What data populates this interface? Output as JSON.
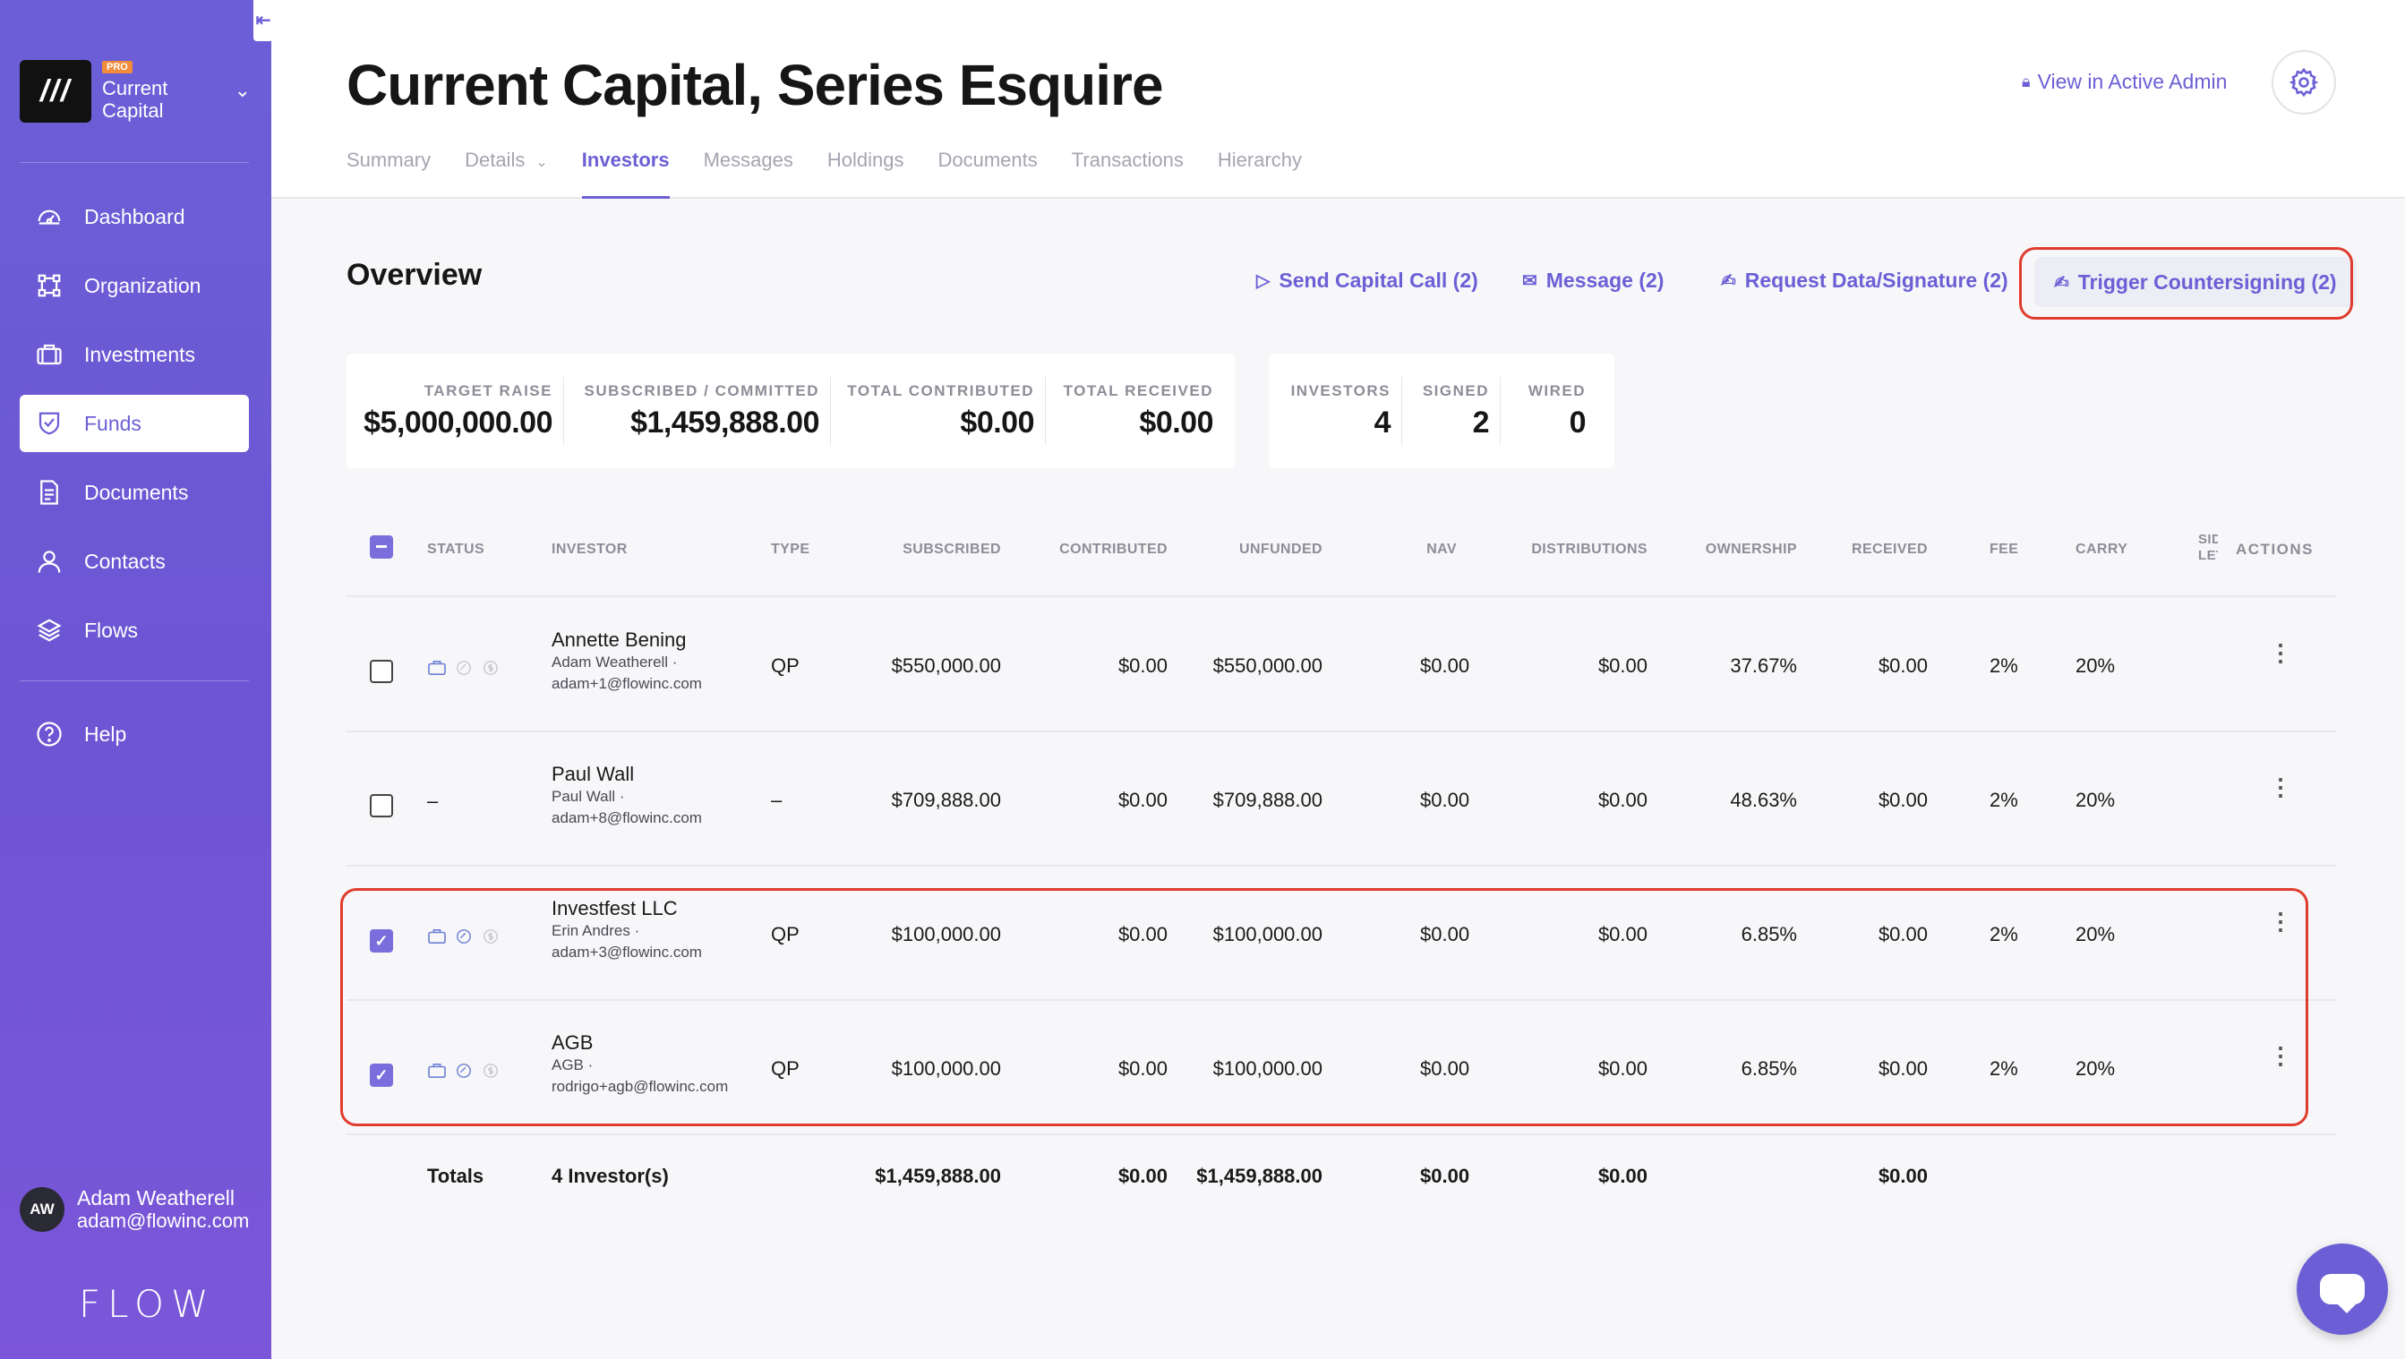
{
  "sidebar": {
    "org": {
      "logo": "///",
      "badge": "PRO",
      "name_line1": "Current",
      "name_line2": "Capital"
    },
    "nav": [
      {
        "label": "Dashboard",
        "icon": "dashboard-icon"
      },
      {
        "label": "Organization",
        "icon": "organization-icon"
      },
      {
        "label": "Investments",
        "icon": "briefcase-icon"
      },
      {
        "label": "Funds",
        "icon": "shield-check-icon",
        "active": true
      },
      {
        "label": "Documents",
        "icon": "document-icon"
      },
      {
        "label": "Contacts",
        "icon": "user-icon"
      },
      {
        "label": "Flows",
        "icon": "layers-icon"
      }
    ],
    "help": "Help",
    "user": {
      "initials": "AW",
      "name": "Adam Weatherell",
      "email": "adam@flowinc.com"
    },
    "brand": "FLOW"
  },
  "header": {
    "title": "Current Capital, Series Esquire",
    "admin_link": "View in Active Admin",
    "tabs": [
      "Summary",
      "Details",
      "Investors",
      "Messages",
      "Holdings",
      "Documents",
      "Transactions",
      "Hierarchy"
    ],
    "active_tab": "Investors"
  },
  "overview": {
    "title": "Overview",
    "actions": {
      "send_capital_call": "Send Capital Call (2)",
      "message": "Message (2)",
      "request_data": "Request Data/Signature (2)",
      "trigger_countersigning": "Trigger Countersigning (2)"
    },
    "stats": {
      "target_raise": {
        "label": "TARGET RAISE",
        "value": "$5,000,000.00"
      },
      "subscribed": {
        "label": "SUBSCRIBED / COMMITTED",
        "value": "$1,459,888.00"
      },
      "contributed": {
        "label": "TOTAL CONTRIBUTED",
        "value": "$0.00"
      },
      "received": {
        "label": "TOTAL RECEIVED",
        "value": "$0.00"
      },
      "investors": {
        "label": "INVESTORS",
        "value": "4"
      },
      "signed": {
        "label": "SIGNED",
        "value": "2"
      },
      "wired": {
        "label": "WIRED",
        "value": "0"
      }
    }
  },
  "table": {
    "headers": {
      "status": "STATUS",
      "investor": "INVESTOR",
      "type": "TYPE",
      "subscribed": "SUBSCRIBED",
      "contributed": "CONTRIBUTED",
      "unfunded": "UNFUNDED",
      "nav": "NAV",
      "distributions": "DISTRIBUTIONS",
      "ownership": "OWNERSHIP",
      "received": "RECEIVED",
      "fee": "FEE",
      "carry": "CARRY",
      "side_letter_1": "SID",
      "side_letter_2": "LETT",
      "actions": "ACTIONS"
    },
    "rows": [
      {
        "checked": false,
        "status": "icons",
        "name": "Annette Bening",
        "contact": "Adam Weatherell ·",
        "email": "adam+1@flowinc.com",
        "type": "QP",
        "subscribed": "$550,000.00",
        "contributed": "$0.00",
        "unfunded": "$550,000.00",
        "nav": "$0.00",
        "distributions": "$0.00",
        "ownership": "37.67%",
        "received": "$0.00",
        "fee": "2%",
        "carry": "20%"
      },
      {
        "checked": false,
        "status": "–",
        "name": "Paul Wall",
        "contact": "Paul Wall ·",
        "email": "adam+8@flowinc.com",
        "type": "–",
        "subscribed": "$709,888.00",
        "contributed": "$0.00",
        "unfunded": "$709,888.00",
        "nav": "$0.00",
        "distributions": "$0.00",
        "ownership": "48.63%",
        "received": "$0.00",
        "fee": "2%",
        "carry": "20%"
      },
      {
        "checked": true,
        "status": "icons",
        "name": "Investfest LLC",
        "contact": "Erin Andres ·",
        "email": "adam+3@flowinc.com",
        "type": "QP",
        "subscribed": "$100,000.00",
        "contributed": "$0.00",
        "unfunded": "$100,000.00",
        "nav": "$0.00",
        "distributions": "$0.00",
        "ownership": "6.85%",
        "received": "$0.00",
        "fee": "2%",
        "carry": "20%"
      },
      {
        "checked": true,
        "status": "icons",
        "name": "AGB",
        "contact": "AGB ·",
        "email": "rodrigo+agb@flowinc.com",
        "type": "QP",
        "subscribed": "$100,000.00",
        "contributed": "$0.00",
        "unfunded": "$100,000.00",
        "nav": "$0.00",
        "distributions": "$0.00",
        "ownership": "6.85%",
        "received": "$0.00",
        "fee": "2%",
        "carry": "20%"
      }
    ],
    "totals": {
      "label": "Totals",
      "investors": "4 Investor(s)",
      "subscribed": "$1,459,888.00",
      "contributed": "$0.00",
      "unfunded": "$1,459,888.00",
      "nav": "$0.00",
      "distributions": "$0.00",
      "received": "$0.00"
    }
  },
  "colors": {
    "accent": "#6c5fd6",
    "highlight": "#e03c2e"
  }
}
